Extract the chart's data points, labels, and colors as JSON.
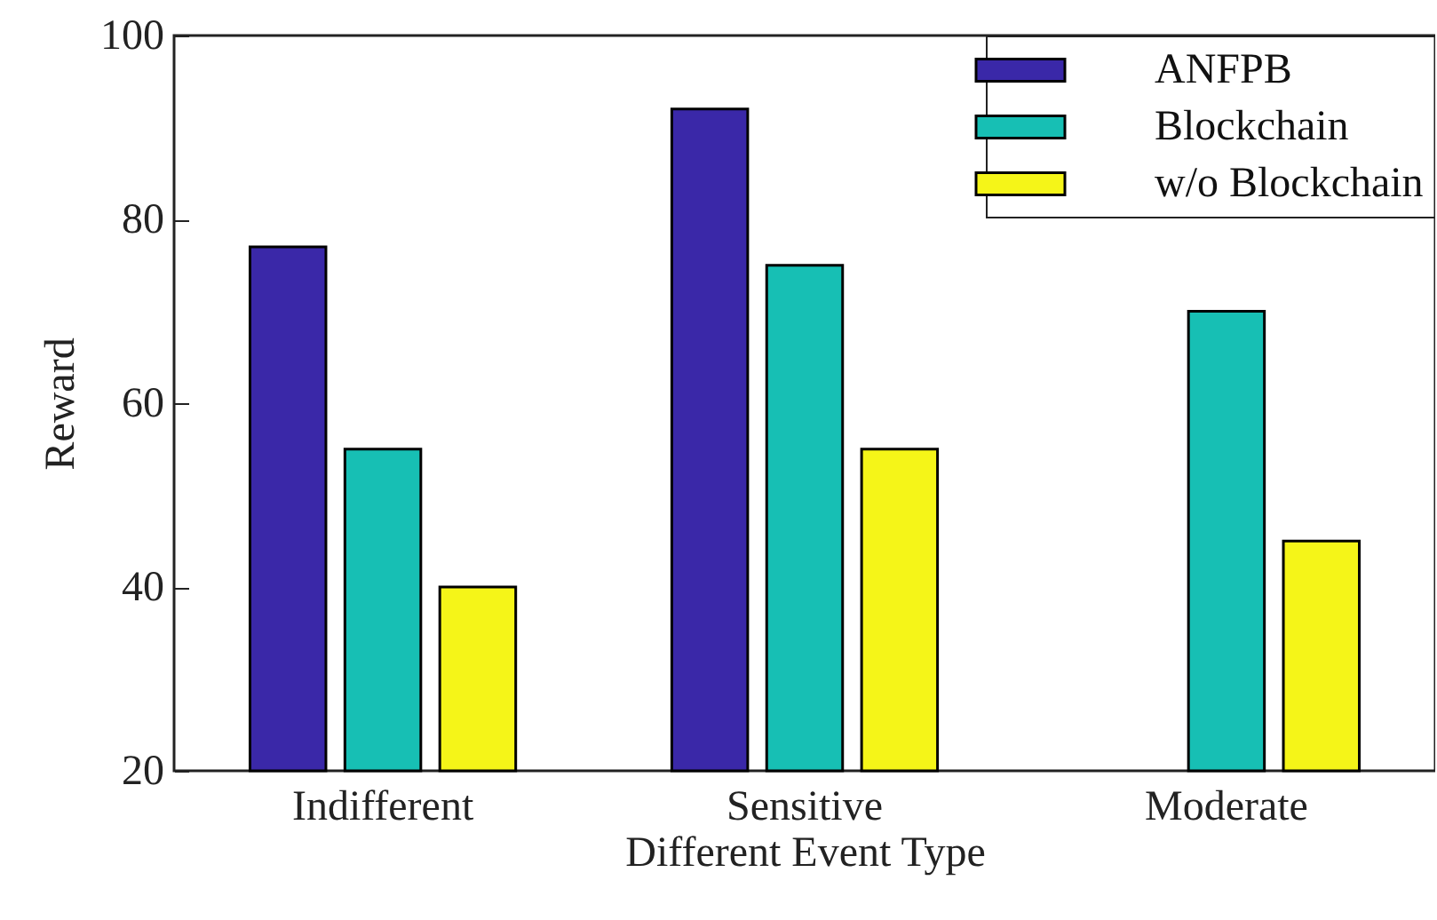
{
  "chart_data": {
    "type": "bar",
    "xlabel": "Different Event Type",
    "ylabel": "Reward",
    "categories": [
      "Indifferent",
      "Sensitive",
      "Moderate"
    ],
    "series": [
      {
        "name": "ANFPB",
        "color": "#3a28a8",
        "values": [
          77,
          92,
          null
        ]
      },
      {
        "name": "Blockchain",
        "color": "#17bfb4",
        "values": [
          55,
          75,
          70
        ]
      },
      {
        "name": "w/o Blockchain",
        "color": "#f5f518",
        "values": [
          40,
          55,
          45
        ]
      }
    ],
    "ylim": [
      20,
      100
    ],
    "yticks": [
      20,
      40,
      60,
      80,
      100
    ],
    "grid": false,
    "legend": "top right"
  }
}
